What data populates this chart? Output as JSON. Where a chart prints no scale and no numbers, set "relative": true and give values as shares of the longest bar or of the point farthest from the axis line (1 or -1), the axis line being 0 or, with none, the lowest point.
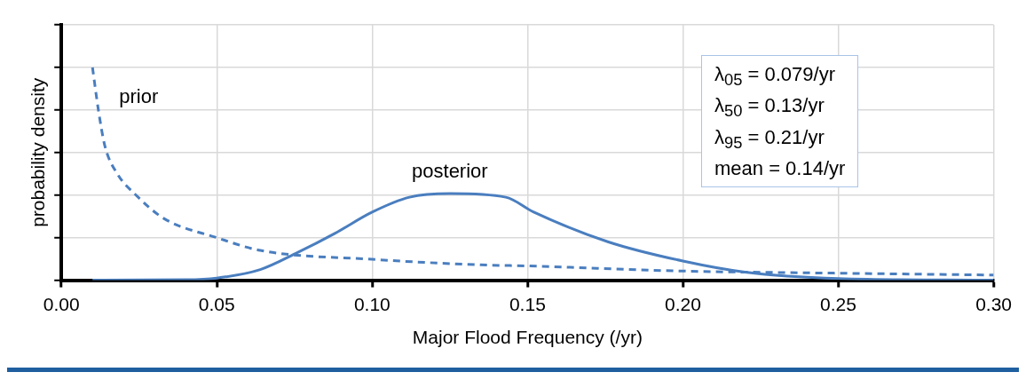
{
  "chart_data": {
    "type": "line",
    "relative": true,
    "xlabel": "Major Flood Frequency (/yr)",
    "ylabel": "probability density",
    "xlim": [
      0,
      0.3
    ],
    "xticks": [
      {
        "value": 0,
        "label": "0.00"
      },
      {
        "value": 0.05,
        "label": "0.05"
      },
      {
        "value": 0.1,
        "label": "0.10"
      },
      {
        "value": 0.15,
        "label": "0.15"
      },
      {
        "value": 0.2,
        "label": "0.20"
      },
      {
        "value": 0.25,
        "label": "0.25"
      },
      {
        "value": 0.3,
        "label": "0.30"
      }
    ],
    "grid": true,
    "legend": false,
    "marker": "none",
    "annotations": [
      "λ$_{05}$ = 0.079/yr",
      "λ$_{50}$ = 0.13/yr",
      "λ$_{95}$  = 0.21/yr",
      "mean = 0.14/yr"
    ],
    "series": [
      {
        "name": "prior",
        "color": "#4a7ebf",
        "line_style": "dashed",
        "x": [
          0.01,
          0.012,
          0.014,
          0.018,
          0.024,
          0.033,
          0.05,
          0.064,
          0.1,
          0.135,
          0.15,
          0.2,
          0.25,
          0.3
        ],
        "values": [
          1,
          0.79,
          0.63,
          0.5,
          0.4,
          0.29,
          0.2,
          0.14,
          0.098,
          0.072,
          0.067,
          0.043,
          0.033,
          0.024
        ]
      },
      {
        "name": "posterior",
        "color": "#4a7ebf",
        "line_style": "solid",
        "x": [
          0.01,
          0.04,
          0.05,
          0.064,
          0.076,
          0.088,
          0.1,
          0.112,
          0.125,
          0.143,
          0.152,
          0.176,
          0.2,
          0.22,
          0.25,
          0.3
        ],
        "values": [
          0,
          0.002,
          0.01,
          0.05,
          0.13,
          0.22,
          0.32,
          0.39,
          0.407,
          0.39,
          0.32,
          0.18,
          0.09,
          0.038,
          0.008,
          0
        ]
      }
    ]
  }
}
